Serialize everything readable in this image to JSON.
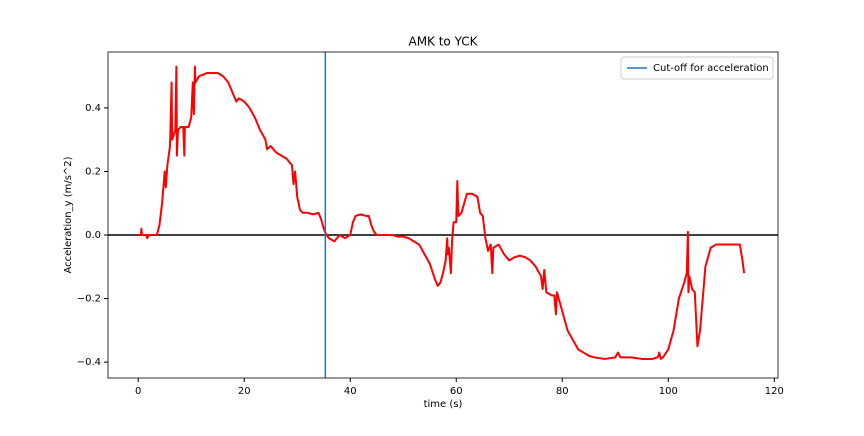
{
  "chart_data": {
    "type": "line",
    "title": "AMK to YCK",
    "xlabel": "time (s)",
    "ylabel": "Acceleration_y (m/s^2)",
    "ylabel_color": "#1f77b4",
    "x": [
      0,
      0.5,
      0.6,
      0.7,
      1.5,
      1.7,
      2,
      3,
      3.5,
      4,
      4.5,
      5,
      5.2,
      5.5,
      6,
      6.3,
      6.4,
      7,
      7.2,
      7.3,
      7.5,
      8,
      8.5,
      8.7,
      8.8,
      9.5,
      10,
      10.3,
      10.5,
      10.7,
      10.8,
      11.5,
      13,
      14,
      15,
      16,
      17,
      18,
      18.5,
      19,
      20,
      21,
      22,
      23,
      24,
      24.3,
      25,
      26,
      27,
      28,
      29,
      29.3,
      29.6,
      30,
      30.5,
      31,
      32,
      33,
      34,
      34.5,
      35,
      35.5,
      36,
      37,
      38,
      39,
      40,
      40.5,
      41,
      42,
      43,
      43.5,
      44,
      44.5,
      45,
      46,
      47,
      48,
      49,
      50,
      51,
      52,
      53,
      54,
      55,
      56,
      56.5,
      57,
      57.5,
      58,
      58.3,
      58.4,
      58.6,
      59,
      59.2,
      59.5,
      60,
      60.2,
      60.4,
      61,
      62,
      63,
      64,
      64.5,
      65,
      65.5,
      66,
      66.5,
      66.8,
      67,
      68,
      69,
      70,
      71,
      72,
      73,
      74,
      75,
      76,
      76.3,
      76.6,
      77,
      78,
      78.5,
      78.8,
      79,
      80,
      81,
      82,
      83,
      84,
      85,
      86,
      88,
      90,
      90.5,
      91,
      93,
      95,
      97,
      98,
      98.3,
      98.6,
      99,
      100,
      101,
      102,
      103,
      103.5,
      103.7,
      103.8,
      104,
      104.5,
      105,
      105.5,
      106,
      107,
      108,
      109,
      110,
      112,
      113.5,
      114,
      114.3
    ],
    "series": [
      {
        "color": "#ff0000",
        "values": [
          0,
          0,
          0.02,
          0,
          0,
          -0.01,
          0,
          0,
          0,
          0.03,
          0.1,
          0.2,
          0.15,
          0.22,
          0.28,
          0.48,
          0.3,
          0.33,
          0.53,
          0.25,
          0.33,
          0.34,
          0.34,
          0.25,
          0.34,
          0.34,
          0.37,
          0.48,
          0.38,
          0.53,
          0.48,
          0.5,
          0.51,
          0.51,
          0.51,
          0.5,
          0.48,
          0.44,
          0.42,
          0.43,
          0.42,
          0.4,
          0.37,
          0.33,
          0.3,
          0.27,
          0.28,
          0.26,
          0.25,
          0.24,
          0.22,
          0.16,
          0.2,
          0.12,
          0.08,
          0.07,
          0.07,
          0.065,
          0.07,
          0.05,
          0.02,
          0,
          -0.01,
          -0.02,
          0,
          -0.01,
          0,
          0.04,
          0.06,
          0.065,
          0.06,
          0.06,
          0.03,
          0.01,
          0,
          0,
          0,
          0,
          -0.005,
          -0.005,
          -0.01,
          -0.02,
          -0.03,
          -0.06,
          -0.09,
          -0.14,
          -0.16,
          -0.15,
          -0.12,
          -0.08,
          -0.01,
          -0.06,
          -0.04,
          -0.12,
          -0.02,
          0.04,
          0.04,
          0.17,
          0.06,
          0.07,
          0.13,
          0.13,
          0.12,
          0.07,
          0.06,
          -0.01,
          -0.05,
          -0.03,
          -0.12,
          -0.04,
          -0.03,
          -0.06,
          -0.08,
          -0.07,
          -0.065,
          -0.07,
          -0.08,
          -0.1,
          -0.13,
          -0.17,
          -0.11,
          -0.18,
          -0.19,
          -0.19,
          -0.25,
          -0.18,
          -0.24,
          -0.3,
          -0.33,
          -0.36,
          -0.37,
          -0.38,
          -0.385,
          -0.39,
          -0.385,
          -0.37,
          -0.385,
          -0.385,
          -0.39,
          -0.39,
          -0.385,
          -0.37,
          -0.39,
          -0.385,
          -0.36,
          -0.3,
          -0.2,
          -0.15,
          -0.12,
          0.01,
          -0.18,
          -0.13,
          -0.17,
          -0.18,
          -0.35,
          -0.3,
          -0.1,
          -0.04,
          -0.03,
          -0.03,
          -0.03,
          -0.03,
          -0.08,
          -0.12
        ]
      }
    ],
    "vlines": [
      {
        "name": "Cut-off for acceleration",
        "x": 35.3,
        "color": "#1f77b4"
      }
    ],
    "hlines": [
      {
        "y": 0,
        "color": "#000000"
      }
    ],
    "xlim": [
      -5.7,
      120.7
    ],
    "ylim": [
      -0.45,
      0.576
    ],
    "xticks": [
      0,
      20,
      40,
      60,
      80,
      100,
      120
    ],
    "yticks": [
      {
        "value": -0.4,
        "label": "−0.4"
      },
      {
        "value": -0.2,
        "label": "−0.2"
      },
      {
        "value": 0,
        "label": "0.0"
      },
      0.2,
      0.4
    ],
    "legend": "upper right"
  }
}
